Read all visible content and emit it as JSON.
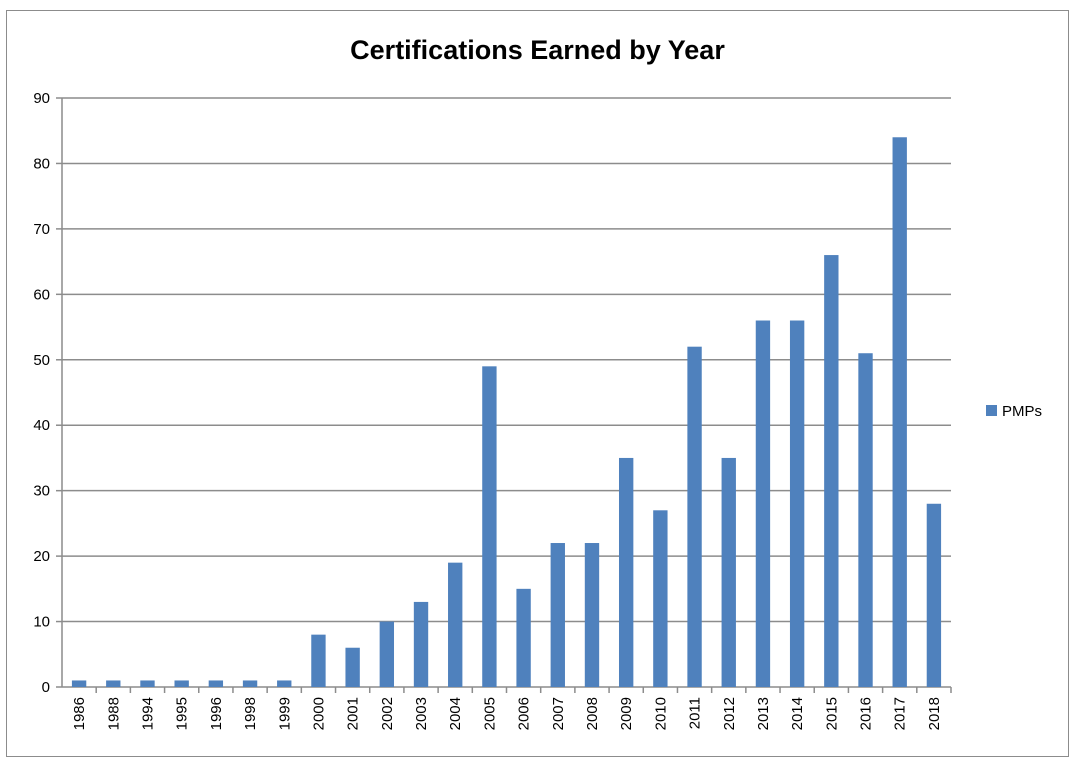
{
  "chart_data": {
    "type": "bar",
    "title": "Certifications Earned by Year",
    "xlabel": "",
    "ylabel": "",
    "categories": [
      "1986",
      "1988",
      "1994",
      "1995",
      "1996",
      "1998",
      "1999",
      "2000",
      "2001",
      "2002",
      "2003",
      "2004",
      "2005",
      "2006",
      "2007",
      "2008",
      "2009",
      "2010",
      "2011",
      "2012",
      "2013",
      "2014",
      "2015",
      "2016",
      "2017",
      "2018"
    ],
    "series": [
      {
        "name": "PMPs",
        "color": "#4f81bd",
        "values": [
          1,
          1,
          1,
          1,
          1,
          1,
          1,
          8,
          6,
          10,
          13,
          19,
          49,
          15,
          22,
          22,
          35,
          27,
          52,
          35,
          56,
          56,
          66,
          51,
          84,
          28
        ]
      }
    ],
    "ylim": [
      0,
      90
    ],
    "yticks": [
      0,
      10,
      20,
      30,
      40,
      50,
      60,
      70,
      80,
      90
    ],
    "grid": true,
    "legend_position": "right"
  }
}
